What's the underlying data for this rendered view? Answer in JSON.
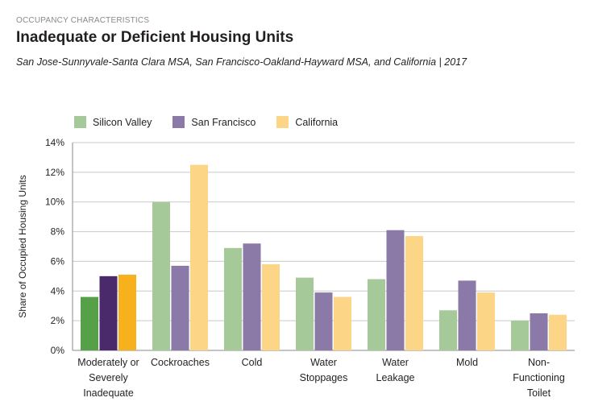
{
  "header": {
    "kicker": "OCCUPANCY CHARACTERISTICS",
    "title": "Inadequate or Deficient Housing Units",
    "subtitle": "San Jose-Sunnyvale-Santa Clara MSA, San Francisco-Oakland-Hayward MSA, and California | 2017"
  },
  "colors": {
    "muted": [
      "#a6c99a",
      "#8b79a7",
      "#fdd586"
    ],
    "highlight": [
      "#56a047",
      "#4b2a6b",
      "#f7b11d"
    ],
    "grid": "#c9c9c9",
    "axis": "#8a8a8a"
  },
  "chart_data": {
    "type": "bar",
    "ylabel": "Share of Occupied Housing Units",
    "ylim": [
      0,
      14
    ],
    "yticks": [
      "0%",
      "2%",
      "4%",
      "6%",
      "8%",
      "10%",
      "12%",
      "14%"
    ],
    "grid": true,
    "legend": "top-left",
    "categories": [
      [
        "Moderately or",
        "Severely",
        "Inadequate"
      ],
      [
        "Cockroaches"
      ],
      [
        "Cold"
      ],
      [
        "Water",
        "Stoppages"
      ],
      [
        "Water",
        "Leakage"
      ],
      [
        "Mold"
      ],
      [
        "Non-",
        "Functioning",
        "Toilet"
      ]
    ],
    "series": [
      {
        "name": "Silicon Valley",
        "values": [
          3.6,
          10.0,
          6.9,
          4.9,
          4.8,
          2.7,
          2.0
        ]
      },
      {
        "name": "San Francisco",
        "values": [
          5.0,
          5.7,
          7.2,
          3.9,
          8.1,
          4.7,
          2.5
        ]
      },
      {
        "name": "California",
        "values": [
          5.1,
          12.5,
          5.8,
          3.6,
          7.7,
          3.9,
          2.4
        ]
      }
    ]
  }
}
